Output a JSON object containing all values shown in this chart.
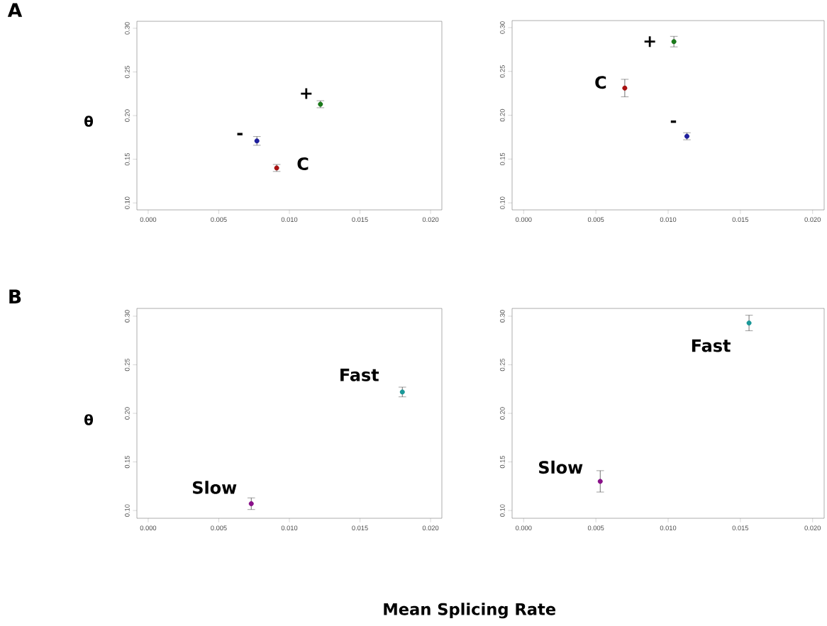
{
  "chart_data": [
    {
      "type": "scatter",
      "title": "A",
      "ylabel": "θ",
      "xlim": [
        -0.0008,
        0.0208
      ],
      "ylim": [
        0.092,
        0.308
      ],
      "xticks": [
        {
          "value": 0,
          "label": "0.000"
        },
        {
          "value": 0.005,
          "label": "0.005"
        },
        {
          "value": 0.01,
          "label": "0.010"
        },
        {
          "value": 0.015,
          "label": "0.015"
        },
        {
          "value": 0.02,
          "label": "0.020"
        }
      ],
      "yticks": [
        {
          "value": 0.1,
          "label": "0.10"
        },
        {
          "value": 0.15,
          "label": "0.15"
        },
        {
          "value": 0.2,
          "label": "0.20"
        },
        {
          "value": 0.25,
          "label": "0.25"
        },
        {
          "value": 0.3,
          "label": "0.30"
        }
      ],
      "series": [
        {
          "name": "+",
          "color": "#1a7a1a",
          "x": [
            0.0122
          ],
          "values": [
            0.213
          ],
          "errors": [
            0.004
          ]
        },
        {
          "name": "-",
          "color": "#1f1f9f",
          "x": [
            0.0077
          ],
          "values": [
            0.171
          ],
          "errors": [
            0.005
          ]
        },
        {
          "name": "C",
          "color": "#aa1111",
          "x": [
            0.0091
          ],
          "values": [
            0.14
          ],
          "errors": [
            0.004
          ]
        }
      ]
    },
    {
      "type": "scatter",
      "xlim": [
        -0.0008,
        0.0208
      ],
      "ylim": [
        0.092,
        0.308
      ],
      "xticks": [
        {
          "value": 0,
          "label": "0.000"
        },
        {
          "value": 0.005,
          "label": "0.005"
        },
        {
          "value": 0.01,
          "label": "0.010"
        },
        {
          "value": 0.015,
          "label": "0.015"
        },
        {
          "value": 0.02,
          "label": "0.020"
        }
      ],
      "yticks": [
        {
          "value": 0.1,
          "label": "0.10"
        },
        {
          "value": 0.15,
          "label": "0.15"
        },
        {
          "value": 0.2,
          "label": "0.20"
        },
        {
          "value": 0.25,
          "label": "0.25"
        },
        {
          "value": 0.3,
          "label": "0.30"
        }
      ],
      "series": [
        {
          "name": "+",
          "color": "#1a7a1a",
          "x": [
            0.0104
          ],
          "values": [
            0.284
          ],
          "errors": [
            0.006
          ]
        },
        {
          "name": "C",
          "color": "#aa1111",
          "x": [
            0.007
          ],
          "values": [
            0.231
          ],
          "errors": [
            0.01
          ]
        },
        {
          "name": "-",
          "color": "#1f1f9f",
          "x": [
            0.0113
          ],
          "values": [
            0.176
          ],
          "errors": [
            0.004
          ]
        }
      ]
    },
    {
      "type": "scatter",
      "title": "B",
      "ylabel": "θ",
      "xlabel": "Mean Splicing Rate",
      "xlim": [
        -0.0008,
        0.0208
      ],
      "ylim": [
        0.092,
        0.308
      ],
      "xticks": [
        {
          "value": 0,
          "label": "0.000"
        },
        {
          "value": 0.005,
          "label": "0.005"
        },
        {
          "value": 0.01,
          "label": "0.010"
        },
        {
          "value": 0.015,
          "label": "0.015"
        },
        {
          "value": 0.02,
          "label": "0.020"
        }
      ],
      "yticks": [
        {
          "value": 0.1,
          "label": "0.10"
        },
        {
          "value": 0.15,
          "label": "0.15"
        },
        {
          "value": 0.2,
          "label": "0.20"
        },
        {
          "value": 0.25,
          "label": "0.25"
        },
        {
          "value": 0.3,
          "label": "0.30"
        }
      ],
      "series": [
        {
          "name": "Fast",
          "color": "#1a9a9a",
          "x": [
            0.018
          ],
          "values": [
            0.222
          ],
          "errors": [
            0.005
          ]
        },
        {
          "name": "Slow",
          "color": "#8b108b",
          "x": [
            0.0073
          ],
          "values": [
            0.107
          ],
          "errors": [
            0.006
          ]
        }
      ]
    },
    {
      "type": "scatter",
      "xlim": [
        -0.0008,
        0.0208
      ],
      "ylim": [
        0.092,
        0.308
      ],
      "xticks": [
        {
          "value": 0,
          "label": "0.000"
        },
        {
          "value": 0.005,
          "label": "0.005"
        },
        {
          "value": 0.01,
          "label": "0.010"
        },
        {
          "value": 0.015,
          "label": "0.015"
        },
        {
          "value": 0.02,
          "label": "0.020"
        }
      ],
      "yticks": [
        {
          "value": 0.1,
          "label": "0.10"
        },
        {
          "value": 0.15,
          "label": "0.15"
        },
        {
          "value": 0.2,
          "label": "0.20"
        },
        {
          "value": 0.25,
          "label": "0.25"
        },
        {
          "value": 0.3,
          "label": "0.30"
        }
      ],
      "series": [
        {
          "name": "Fast",
          "color": "#1a9a9a",
          "x": [
            0.0156
          ],
          "values": [
            0.293
          ],
          "errors": [
            0.008
          ]
        },
        {
          "name": "Slow",
          "color": "#8b108b",
          "x": [
            0.0053
          ],
          "values": [
            0.13
          ],
          "errors": [
            0.011
          ]
        }
      ]
    }
  ]
}
